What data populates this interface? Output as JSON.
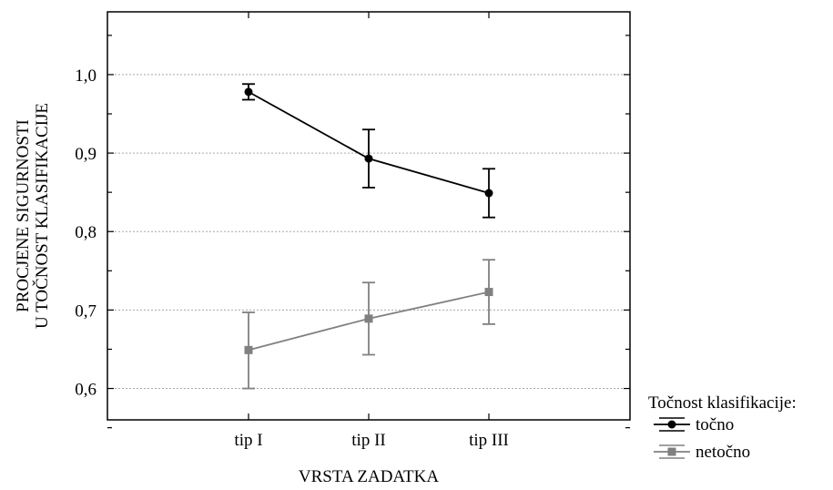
{
  "chart_data": {
    "type": "line",
    "title": "",
    "xlabel": "VRSTA ZADATKA",
    "ylabel_lines": [
      "PROCJENE SIGURNOSTI",
      "U TOČNOST KLASIFIKACIJE"
    ],
    "categories": [
      "tip I",
      "tip II",
      "tip III"
    ],
    "ylim": [
      0.56,
      1.08
    ],
    "yticks": [
      0.6,
      0.7,
      0.8,
      0.9,
      1.0
    ],
    "ytick_labels": [
      "0,6",
      "0,7",
      "0,8",
      "0,9",
      "1,0"
    ],
    "grid": "horizontal dotted",
    "legend": {
      "title": "Točnost klasifikacije:",
      "placement": "bottom-right outside"
    },
    "series": [
      {
        "name": "točno",
        "color": "#000000",
        "marker": "circle",
        "values": [
          0.978,
          0.893,
          0.849
        ],
        "err_low": [
          0.968,
          0.856,
          0.818
        ],
        "err_high": [
          0.988,
          0.93,
          0.88
        ]
      },
      {
        "name": "netočno",
        "color": "#808080",
        "marker": "square",
        "values": [
          0.649,
          0.689,
          0.723
        ],
        "err_low": [
          0.6,
          0.643,
          0.682
        ],
        "err_high": [
          0.697,
          0.735,
          0.764
        ]
      }
    ]
  }
}
